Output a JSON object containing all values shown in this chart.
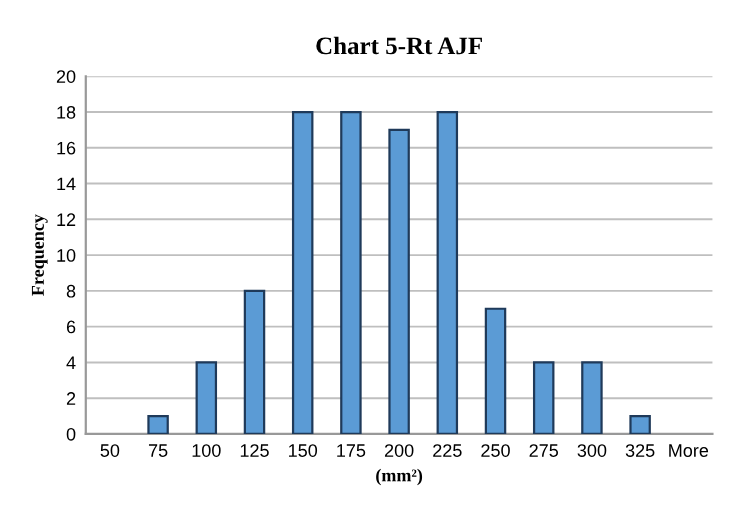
{
  "chart_data": {
    "type": "bar",
    "title": "Chart 5-Rt AJF",
    "xlabel": "(mm²)",
    "ylabel": "Frequency",
    "categories": [
      "50",
      "75",
      "100",
      "125",
      "150",
      "175",
      "200",
      "225",
      "250",
      "275",
      "300",
      "325",
      "More"
    ],
    "values": [
      0,
      1,
      4,
      8,
      18,
      18,
      17,
      18,
      7,
      4,
      4,
      1,
      0
    ],
    "color": "#5b9bd5",
    "ylim": [
      0,
      20
    ],
    "yticks": [
      0,
      2,
      4,
      6,
      8,
      10,
      12,
      14,
      16,
      18,
      20
    ],
    "grid": "y",
    "legend": false
  }
}
